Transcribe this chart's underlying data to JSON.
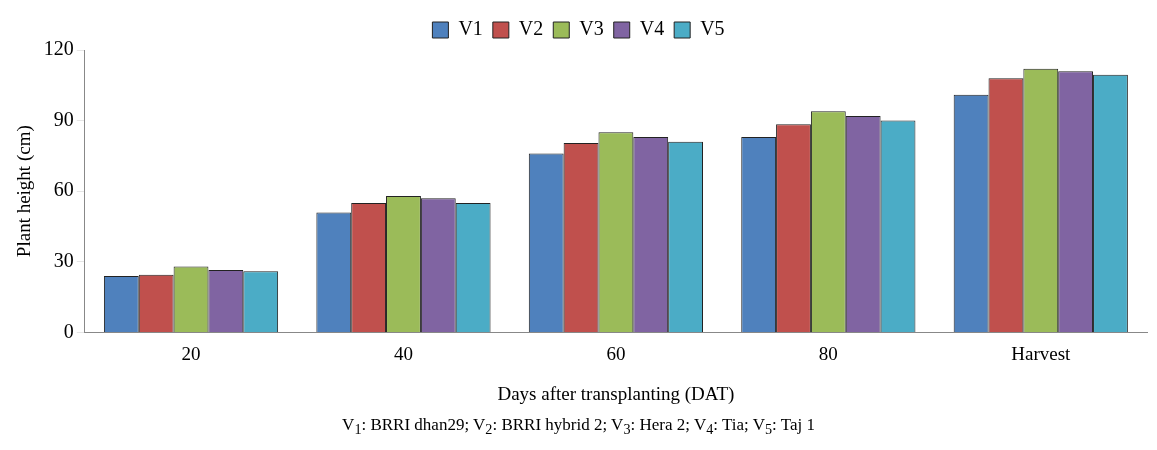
{
  "chart_data": {
    "type": "bar",
    "xlabel": "Days after transplanting (DAT)",
    "ylabel": "Plant height (cm)",
    "categories": [
      "20",
      "40",
      "60",
      "80",
      "Harvest"
    ],
    "series": [
      {
        "name": "V1",
        "color": "#4f81bd",
        "values": [
          24,
          51,
          76,
          83,
          101
        ]
      },
      {
        "name": "V2",
        "color": "#c0504d",
        "values": [
          24.5,
          55,
          80.5,
          88.5,
          108
        ]
      },
      {
        "name": "V3",
        "color": "#9bbb59",
        "values": [
          28,
          58,
          85,
          94,
          112
        ]
      },
      {
        "name": "V4",
        "color": "#8064a2",
        "values": [
          26.5,
          57,
          83,
          92,
          111
        ]
      },
      {
        "name": "V5",
        "color": "#4bacc6",
        "values": [
          26,
          55,
          81,
          90,
          109.5
        ]
      }
    ],
    "ylim": [
      0,
      120
    ],
    "yticks": [
      0,
      30,
      60,
      90,
      120
    ],
    "grid": false,
    "legend": "top",
    "annotations": [
      "V$_{1}$: BRRI dhan29;  V$_{2}$: BRRI hybrid 2;  V$_{3}$: Hera 2;  V$_{4}$: Tia;  V$_{5}$: Taj 1"
    ]
  }
}
